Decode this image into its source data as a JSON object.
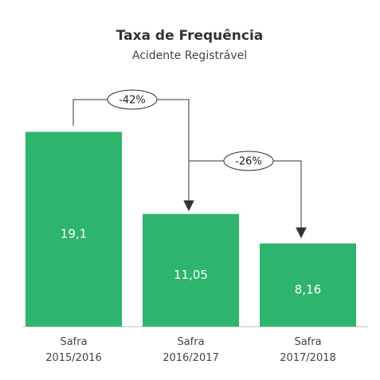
{
  "chart_data": {
    "type": "bar",
    "title": "Taxa de Frequência",
    "subtitle": "Acidente Registrável",
    "categories": [
      "Safra 2015/2016",
      "Safra 2016/2017",
      "Safra 2017/2018"
    ],
    "values": [
      19.1,
      11.05,
      8.16
    ],
    "value_labels": [
      "19,1",
      "11,05",
      "8,16"
    ],
    "color": "#2eb46d",
    "ylim": [
      0,
      20
    ],
    "annotations": [
      "-42%",
      "-26%"
    ]
  }
}
